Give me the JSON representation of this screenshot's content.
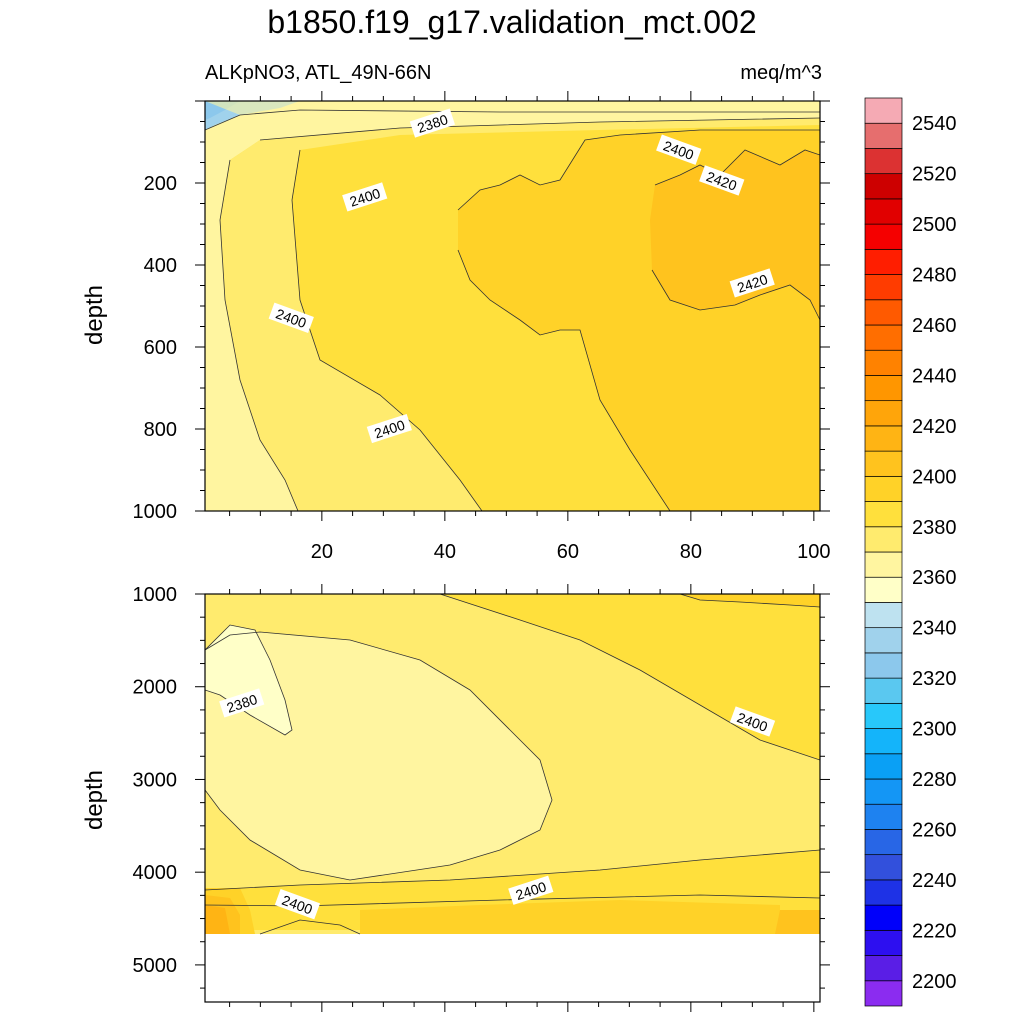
{
  "title": "b1850.f19_g17.validation_mct.002",
  "subtitle_left": "ALKpNO3, ATL_49N-66N",
  "subtitle_right": "meq/m^3",
  "chart_data": {
    "type": "heatmap",
    "panels": [
      {
        "ylabel": "depth",
        "ylim": [
          1000,
          0
        ],
        "yticks": [
          200,
          400,
          600,
          800,
          1000
        ],
        "xlim": [
          1,
          101
        ],
        "xticks": [
          20,
          40,
          60,
          80,
          100
        ],
        "contour_labels": [
          {
            "text": "2380",
            "x": 38,
            "y": 55
          },
          {
            "text": "2400",
            "x": 78,
            "y": 120
          },
          {
            "text": "2400",
            "x": 27,
            "y": 235
          },
          {
            "text": "2400",
            "x": 15,
            "y": 530
          },
          {
            "text": "2400",
            "x": 31,
            "y": 800
          },
          {
            "text": "2420",
            "x": 85,
            "y": 195
          },
          {
            "text": "2420",
            "x": 90,
            "y": 445
          }
        ]
      },
      {
        "ylabel": "depth",
        "ylim": [
          5400,
          1000
        ],
        "yticks": [
          1000,
          2000,
          3000,
          4000,
          5000
        ],
        "xlim": [
          1,
          101
        ],
        "xticks": [],
        "contour_labels": [
          {
            "text": "2380",
            "x": 7,
            "y": 2180
          },
          {
            "text": "2400",
            "x": 90,
            "y": 2380
          },
          {
            "text": "2400",
            "x": 54,
            "y": 4200
          },
          {
            "text": "2400",
            "x": 16,
            "y": 4350
          }
        ]
      }
    ],
    "colorbar": {
      "levels": [
        2200,
        2220,
        2240,
        2260,
        2280,
        2300,
        2320,
        2340,
        2360,
        2380,
        2400,
        2420,
        2440,
        2460,
        2480,
        2500,
        2520,
        2540
      ],
      "colors": [
        "#8b2cf0",
        "#5a1ee6",
        "#2d0ff0",
        "#0000fa",
        "#1e32e6",
        "#3250dc",
        "#2866e6",
        "#1e82f0",
        "#1496f5",
        "#0aa0f5",
        "#14b4fa",
        "#28c8fa",
        "#5ac8f0",
        "#8cc8ec",
        "#a0d2ec",
        "#bee2f0",
        "#ffffc8",
        "#fff5a0",
        "#ffeb6e",
        "#ffe03c",
        "#ffd228",
        "#ffc31e",
        "#ffb414",
        "#ffa50a",
        "#ff9600",
        "#ff8200",
        "#ff6e00",
        "#ff5a00",
        "#ff3c00",
        "#ff1e00",
        "#f50000",
        "#e10000",
        "#cd0000",
        "#dc3232",
        "#e66e6e",
        "#f5aab4"
      ]
    }
  }
}
